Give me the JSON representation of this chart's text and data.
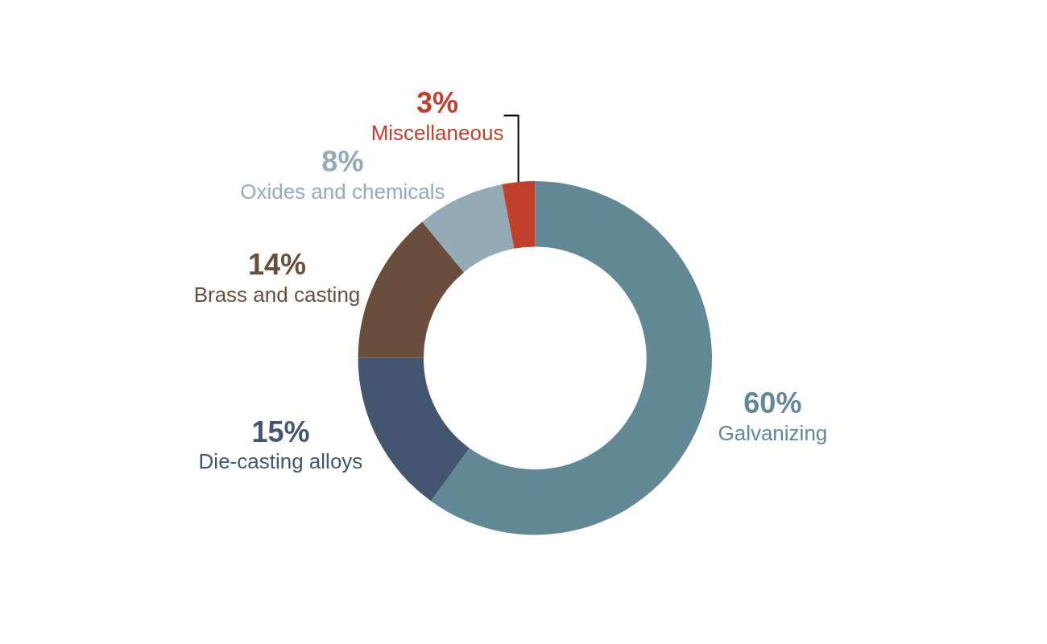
{
  "chart_data": {
    "type": "donut",
    "categories": [
      "Galvanizing",
      "Die-casting alloys",
      "Brass and casting",
      "Oxides and chemicals",
      "Miscellaneous"
    ],
    "values": [
      60,
      15,
      14,
      8,
      3
    ],
    "colors": [
      "#628896",
      "#43566f",
      "#6a4e3c",
      "#93abb6",
      "#c0402c"
    ],
    "value_labels": [
      "60%",
      "15%",
      "14%",
      "8%",
      "3%"
    ]
  }
}
